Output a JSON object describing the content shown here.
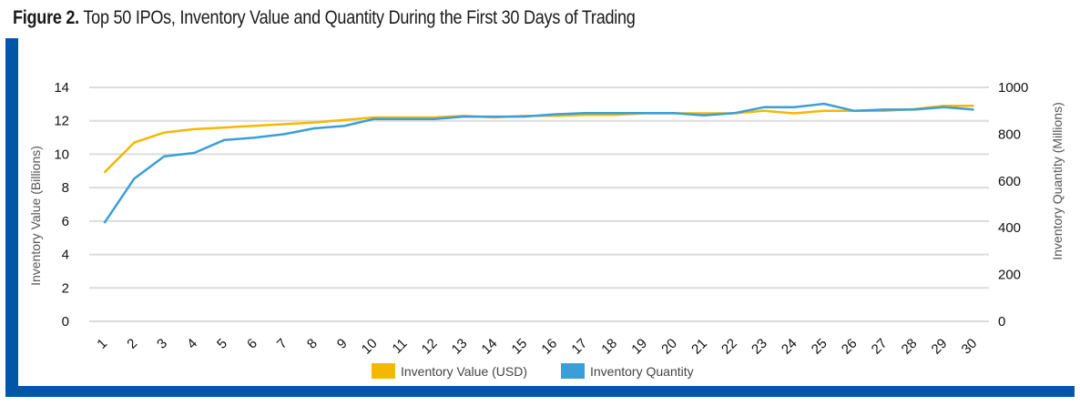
{
  "figure": {
    "number": "Figure 2.",
    "title": "Top 50 IPOs, Inventory Value and Quantity During the First 30 Days of Trading"
  },
  "colors": {
    "frame": "#0057a8",
    "value_series": "#f5b800",
    "quantity_series": "#3a9fd8",
    "grid": "#dcdcdc"
  },
  "chart_data": {
    "type": "line",
    "x": [
      1,
      2,
      3,
      4,
      5,
      6,
      7,
      8,
      9,
      10,
      11,
      12,
      13,
      14,
      15,
      16,
      17,
      18,
      19,
      20,
      21,
      22,
      23,
      24,
      25,
      26,
      27,
      28,
      29,
      30
    ],
    "categories": [
      "1",
      "2",
      "3",
      "4",
      "5",
      "6",
      "7",
      "8",
      "9",
      "10",
      "11",
      "12",
      "13",
      "14",
      "15",
      "16",
      "17",
      "18",
      "19",
      "20",
      "21",
      "22",
      "23",
      "24",
      "25",
      "26",
      "27",
      "28",
      "29",
      "30"
    ],
    "y_left": {
      "label": "Inventory Value (Billions)",
      "lim": [
        0,
        14
      ],
      "ticks": [
        0,
        2,
        4,
        6,
        8,
        10,
        12,
        14
      ]
    },
    "y_right": {
      "label": "Inventory Quantity (Millions)",
      "lim": [
        0,
        1000
      ],
      "ticks": [
        0,
        200,
        400,
        600,
        800,
        1000
      ]
    },
    "grid": true,
    "legend_position": "bottom",
    "series": [
      {
        "name": "Inventory Value (USD)",
        "axis": "left",
        "color": "#f5b800",
        "values": [
          8.9,
          10.7,
          11.3,
          11.5,
          11.6,
          11.7,
          11.8,
          11.9,
          12.05,
          12.2,
          12.2,
          12.2,
          12.3,
          12.2,
          12.3,
          12.3,
          12.35,
          12.35,
          12.45,
          12.45,
          12.45,
          12.45,
          12.6,
          12.45,
          12.6,
          12.6,
          12.6,
          12.7,
          12.9,
          12.9
        ]
      },
      {
        "name": "Inventory Quantity",
        "axis": "right",
        "color": "#3a9fd8",
        "values": [
          420,
          610,
          705,
          720,
          775,
          785,
          800,
          825,
          835,
          865,
          865,
          865,
          875,
          875,
          875,
          885,
          890,
          890,
          890,
          890,
          880,
          890,
          915,
          915,
          930,
          900,
          905,
          905,
          915,
          905
        ]
      }
    ]
  }
}
